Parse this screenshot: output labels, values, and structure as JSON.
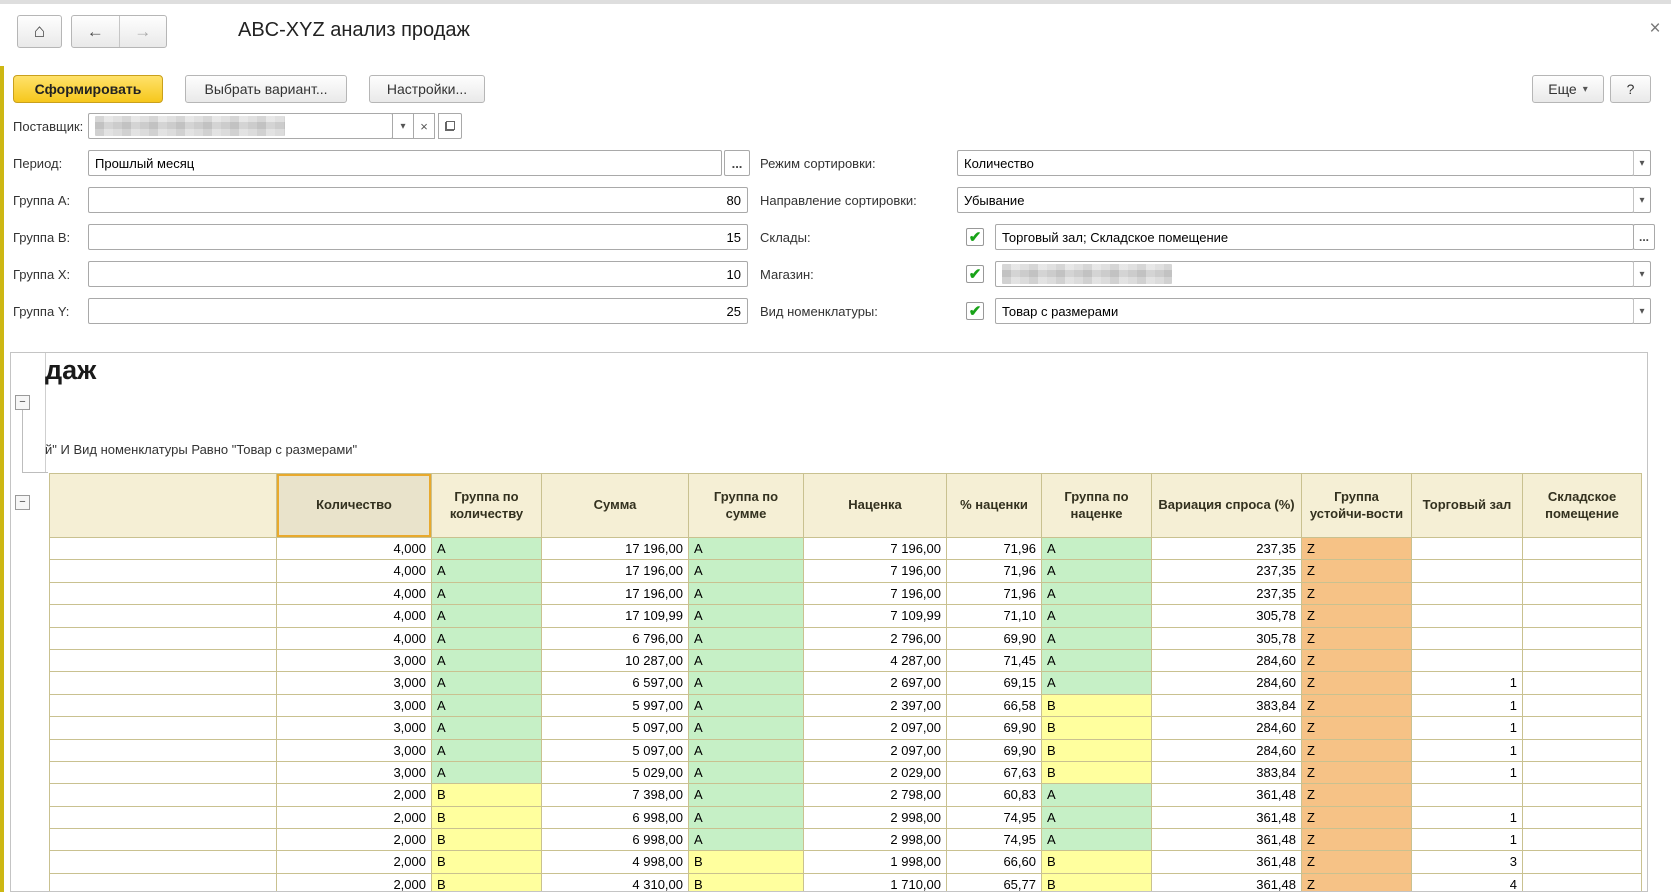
{
  "window": {
    "title": "ABC-XYZ анализ продаж"
  },
  "icons": {
    "home": "⌂",
    "back": "←",
    "forward": "→",
    "close": "×",
    "dropdown": "▾",
    "clear": "×",
    "ellipsis": "...",
    "collapse_minus": "−",
    "checkbox_check": "✔"
  },
  "toolbar": {
    "generate": "Сформировать",
    "choose_variant": "Выбрать вариант...",
    "settings": "Настройки...",
    "more": "Еще",
    "help": "?"
  },
  "filters_left": {
    "supplier_label": "Поставщик:",
    "period_label": "Период:",
    "period_value": "Прошлый месяц",
    "group_a_label": "Группа А:",
    "group_a_value": "80",
    "group_b_label": "Группа В:",
    "group_b_value": "15",
    "group_x_label": "Группа X:",
    "group_x_value": "10",
    "group_y_label": "Группа Y:",
    "group_y_value": "25"
  },
  "filters_right": {
    "sort_mode_label": "Режим сортировки:",
    "sort_mode_value": "Количество",
    "sort_dir_label": "Направление сортировки:",
    "sort_dir_value": "Убывание",
    "warehouses_label": "Склады:",
    "warehouses_value": "Торговый зал; Складское помещение",
    "store_label": "Магазин:",
    "nomenclature_label": "Вид номенклатуры:",
    "nomenclature_value": "Товар с размерами"
  },
  "report": {
    "clipped_title": "даж",
    "filter_line": "й\" И Вид номенклатуры Равно \"Товар с размерами\"",
    "table": {
      "headers": [
        "Количество",
        "Группа по количеству",
        "Сумма",
        "Группа по сумме",
        "Наценка",
        "% наценки",
        "Группа по наценке",
        "Вариация спроса (%)",
        "Группа устойчи-вости",
        "Торговый зал",
        "Складское помещение"
      ],
      "selected_header": "Количество",
      "group_colors": {
        "A": "#c6f0c6",
        "B": "#ffff9e",
        "Z": "#f6c286"
      },
      "rows": [
        [
          "4,000",
          "A",
          "17 196,00",
          "A",
          "7 196,00",
          "71,96",
          "A",
          "237,35",
          "Z",
          "",
          ""
        ],
        [
          "4,000",
          "A",
          "17 196,00",
          "A",
          "7 196,00",
          "71,96",
          "A",
          "237,35",
          "Z",
          "",
          ""
        ],
        [
          "4,000",
          "A",
          "17 196,00",
          "A",
          "7 196,00",
          "71,96",
          "A",
          "237,35",
          "Z",
          "",
          ""
        ],
        [
          "4,000",
          "A",
          "17 109,99",
          "A",
          "7 109,99",
          "71,10",
          "A",
          "305,78",
          "Z",
          "",
          ""
        ],
        [
          "4,000",
          "A",
          "6 796,00",
          "A",
          "2 796,00",
          "69,90",
          "A",
          "305,78",
          "Z",
          "",
          ""
        ],
        [
          "3,000",
          "A",
          "10 287,00",
          "A",
          "4 287,00",
          "71,45",
          "A",
          "284,60",
          "Z",
          "",
          ""
        ],
        [
          "3,000",
          "A",
          "6 597,00",
          "A",
          "2 697,00",
          "69,15",
          "A",
          "284,60",
          "Z",
          "1",
          ""
        ],
        [
          "3,000",
          "A",
          "5 997,00",
          "A",
          "2 397,00",
          "66,58",
          "B",
          "383,84",
          "Z",
          "1",
          ""
        ],
        [
          "3,000",
          "A",
          "5 097,00",
          "A",
          "2 097,00",
          "69,90",
          "B",
          "284,60",
          "Z",
          "1",
          ""
        ],
        [
          "3,000",
          "A",
          "5 097,00",
          "A",
          "2 097,00",
          "69,90",
          "B",
          "284,60",
          "Z",
          "1",
          ""
        ],
        [
          "3,000",
          "A",
          "5 029,00",
          "A",
          "2 029,00",
          "67,63",
          "B",
          "383,84",
          "Z",
          "1",
          ""
        ],
        [
          "2,000",
          "B",
          "7 398,00",
          "A",
          "2 798,00",
          "60,83",
          "A",
          "361,48",
          "Z",
          "",
          ""
        ],
        [
          "2,000",
          "B",
          "6 998,00",
          "A",
          "2 998,00",
          "74,95",
          "A",
          "361,48",
          "Z",
          "1",
          ""
        ],
        [
          "2,000",
          "B",
          "6 998,00",
          "A",
          "2 998,00",
          "74,95",
          "A",
          "361,48",
          "Z",
          "1",
          ""
        ],
        [
          "2,000",
          "B",
          "4 998,00",
          "B",
          "1 998,00",
          "66,60",
          "B",
          "361,48",
          "Z",
          "3",
          ""
        ],
        [
          "2,000",
          "B",
          "4 310,00",
          "B",
          "1 710,00",
          "65,77",
          "B",
          "361,48",
          "Z",
          "4",
          ""
        ]
      ]
    }
  }
}
